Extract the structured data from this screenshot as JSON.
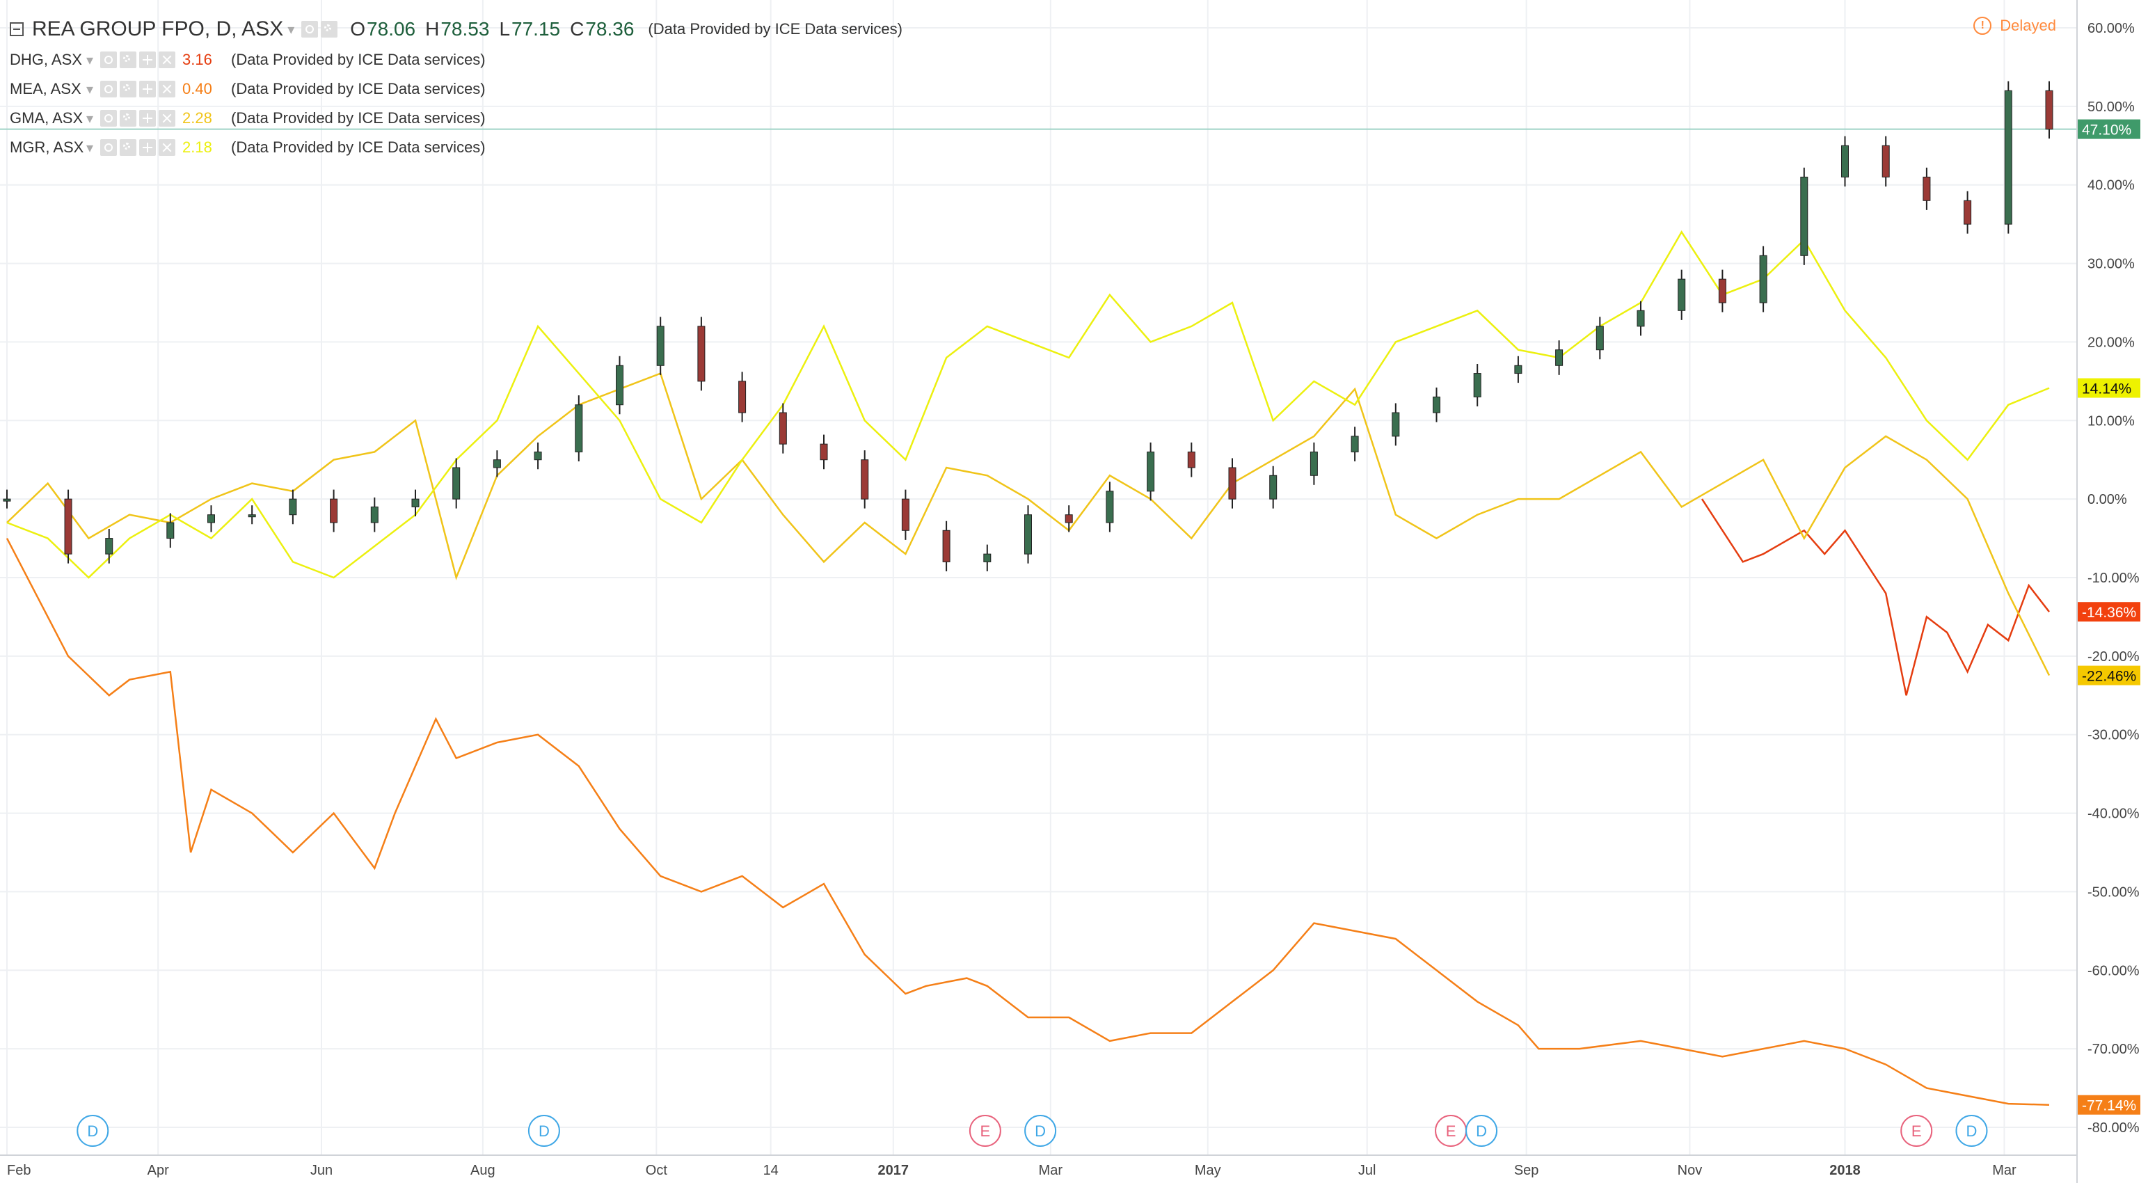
{
  "legend": {
    "symbol": "REA GROUP FPO, D, ASX",
    "ohlc": [
      {
        "label": "O",
        "value": "78.06"
      },
      {
        "label": "H",
        "value": "78.53"
      },
      {
        "label": "L",
        "value": "77.15"
      },
      {
        "label": "C",
        "value": "78.36"
      }
    ],
    "provider": "(Data Provided by ICE Data services)",
    "compare": [
      {
        "name": "DHG, ASX",
        "value": "3.16",
        "color": "#e53d10",
        "provider": "(Data Provided by ICE Data services)"
      },
      {
        "name": "MEA, ASX",
        "value": "0.40",
        "color": "#f57f17",
        "provider": "(Data Provided by ICE Data services)"
      },
      {
        "name": "GMA, ASX",
        "value": "2.28",
        "color": "#f0c419",
        "provider": "(Data Provided by ICE Data services)"
      },
      {
        "name": "MGR, ASX",
        "value": "2.18",
        "color": "#ecf00f",
        "provider": "(Data Provided by ICE Data services)"
      }
    ]
  },
  "status": {
    "delayed": "Delayed",
    "icon": "info-circle-icon",
    "color": "#ff8a3d"
  },
  "colors": {
    "up": "#3a6e4f",
    "down": "#9b3a36",
    "grid": "#eef0f3",
    "axis_text": "#444444"
  },
  "chart_data": {
    "type": "line",
    "yaxis": {
      "ticks": [
        "60.00%",
        "50.00%",
        "40.00%",
        "30.00%",
        "20.00%",
        "10.00%",
        "0.00%",
        "-10.00%",
        "-20.00%",
        "-30.00%",
        "-40.00%",
        "-50.00%",
        "-60.00%",
        "-70.00%",
        "-80.00%"
      ],
      "ylim": [
        -82,
        62
      ]
    },
    "xaxis": {
      "ticks": [
        "Feb",
        "Apr",
        "Jun",
        "Aug",
        "Oct",
        "14",
        "2017",
        "Mar",
        "May",
        "Jul",
        "Sep",
        "Nov",
        "2018",
        "Mar"
      ],
      "bold": [
        "2017",
        "2018"
      ]
    },
    "series": [
      {
        "name": "REA GROUP FPO",
        "kind": "candles",
        "color": "#3a6e4f",
        "last_label": "47.10%",
        "label_bg": "#3f9a6a",
        "label_fg": "#ffffff",
        "x": [
          0,
          3,
          5,
          8,
          10,
          12,
          14,
          16,
          18,
          20,
          22,
          24,
          26,
          28,
          30,
          32,
          34,
          36,
          38,
          40,
          42,
          44,
          46,
          48,
          50,
          52,
          54,
          56,
          58,
          60,
          62,
          64,
          66,
          68,
          70,
          72,
          74,
          76,
          78,
          80,
          82,
          84,
          86,
          88,
          90,
          92,
          94,
          96,
          98,
          100
        ],
        "values": [
          0,
          -7,
          -5,
          -3,
          -2,
          -2,
          0,
          -3,
          -1,
          0,
          4,
          5,
          6,
          12,
          17,
          22,
          15,
          11,
          7,
          5,
          0,
          -4,
          -8,
          -7,
          -2,
          -3,
          1,
          6,
          4,
          0,
          3,
          6,
          8,
          11,
          13,
          16,
          17,
          19,
          22,
          24,
          28,
          25,
          31,
          41,
          45,
          41,
          38,
          35,
          52,
          47.1
        ]
      },
      {
        "name": "DHG, ASX",
        "kind": "line",
        "color": "#e53d10",
        "last_label": "-14.36%",
        "label_bg": "#f2410e",
        "label_fg": "#ffffff",
        "x": [
          83,
          85,
          86,
          88,
          89,
          90,
          92,
          93,
          94,
          95,
          96,
          97,
          98,
          99,
          100
        ],
        "values": [
          0,
          -8,
          -7,
          -4,
          -7,
          -4,
          -12,
          -25,
          -15,
          -17,
          -22,
          -16,
          -18,
          -11,
          -14.36
        ]
      },
      {
        "name": "MEA, ASX",
        "kind": "line",
        "color": "#f57f17",
        "last_label": "-77.14%",
        "label_bg": "#f57f17",
        "label_fg": "#ffffff",
        "x": [
          0,
          2,
          3,
          5,
          6,
          8,
          9,
          10,
          12,
          14,
          16,
          18,
          19,
          21,
          22,
          24,
          26,
          28,
          30,
          32,
          34,
          36,
          38,
          40,
          42,
          44,
          45,
          47,
          48,
          50,
          52,
          54,
          56,
          58,
          60,
          62,
          64,
          66,
          68,
          70,
          72,
          74,
          75,
          77,
          80,
          82,
          84,
          86,
          88,
          90,
          92,
          94,
          96,
          98,
          100
        ],
        "values": [
          -5,
          -15,
          -20,
          -25,
          -23,
          -22,
          -45,
          -37,
          -40,
          -45,
          -40,
          -47,
          -40,
          -28,
          -33,
          -31,
          -30,
          -34,
          -42,
          -48,
          -50,
          -48,
          -52,
          -49,
          -58,
          -63,
          -62,
          -61,
          -62,
          -66,
          -66,
          -69,
          -68,
          -68,
          -64,
          -60,
          -54,
          -55,
          -56,
          -60,
          -64,
          -67,
          -70,
          -70,
          -69,
          -70,
          -71,
          -70,
          -69,
          -70,
          -72,
          -75,
          -76,
          -77,
          -77.14
        ]
      },
      {
        "name": "GMA, ASX",
        "kind": "line",
        "color": "#f0c419",
        "last_label": "-22.46%",
        "label_bg": "#f5c800",
        "label_fg": "#111111",
        "x": [
          0,
          2,
          4,
          6,
          8,
          10,
          12,
          14,
          16,
          18,
          20,
          22,
          24,
          26,
          28,
          30,
          32,
          34,
          36,
          38,
          40,
          42,
          44,
          46,
          48,
          50,
          52,
          54,
          56,
          58,
          60,
          62,
          64,
          66,
          68,
          70,
          72,
          74,
          76,
          78,
          80,
          82,
          84,
          86,
          88,
          90,
          92,
          94,
          96,
          98,
          100
        ],
        "values": [
          -3,
          2,
          -5,
          -2,
          -3,
          0,
          2,
          1,
          5,
          6,
          10,
          -10,
          3,
          8,
          12,
          14,
          16,
          0,
          5,
          -2,
          -8,
          -3,
          -7,
          4,
          3,
          0,
          -4,
          3,
          0,
          -5,
          2,
          5,
          8,
          14,
          -2,
          -5,
          -2,
          0,
          0,
          3,
          6,
          -1,
          2,
          5,
          -5,
          4,
          8,
          5,
          0,
          -12,
          -22.46
        ]
      },
      {
        "name": "MGR, ASX",
        "kind": "line",
        "color": "#ecf00f",
        "last_label": "14.14%",
        "label_bg": "#eef200",
        "label_fg": "#111111",
        "x": [
          0,
          2,
          4,
          6,
          8,
          10,
          12,
          14,
          16,
          18,
          20,
          22,
          24,
          26,
          28,
          30,
          32,
          34,
          36,
          38,
          40,
          42,
          44,
          46,
          48,
          50,
          52,
          54,
          56,
          58,
          60,
          62,
          64,
          66,
          68,
          70,
          72,
          74,
          76,
          78,
          80,
          82,
          84,
          86,
          88,
          90,
          92,
          94,
          96,
          98,
          100
        ],
        "values": [
          -3,
          -5,
          -10,
          -5,
          -2,
          -5,
          0,
          -8,
          -10,
          -6,
          -2,
          5,
          10,
          22,
          16,
          10,
          0,
          -3,
          5,
          12,
          22,
          10,
          5,
          18,
          22,
          20,
          18,
          26,
          20,
          22,
          25,
          10,
          15,
          12,
          20,
          22,
          24,
          19,
          18,
          22,
          25,
          34,
          26,
          28,
          33,
          24,
          18,
          10,
          5,
          12,
          14.14
        ]
      }
    ],
    "events": [
      {
        "x": 4.2,
        "letter": "D"
      },
      {
        "x": 26.3,
        "letter": "D"
      },
      {
        "x": 47.9,
        "letter": "E"
      },
      {
        "x": 50.6,
        "letter": "D"
      },
      {
        "x": 70.7,
        "letter": "E"
      },
      {
        "x": 72.2,
        "letter": "D"
      },
      {
        "x": 93.5,
        "letter": "E"
      },
      {
        "x": 96.2,
        "letter": "D"
      }
    ],
    "crosshair_value": 47.1
  }
}
